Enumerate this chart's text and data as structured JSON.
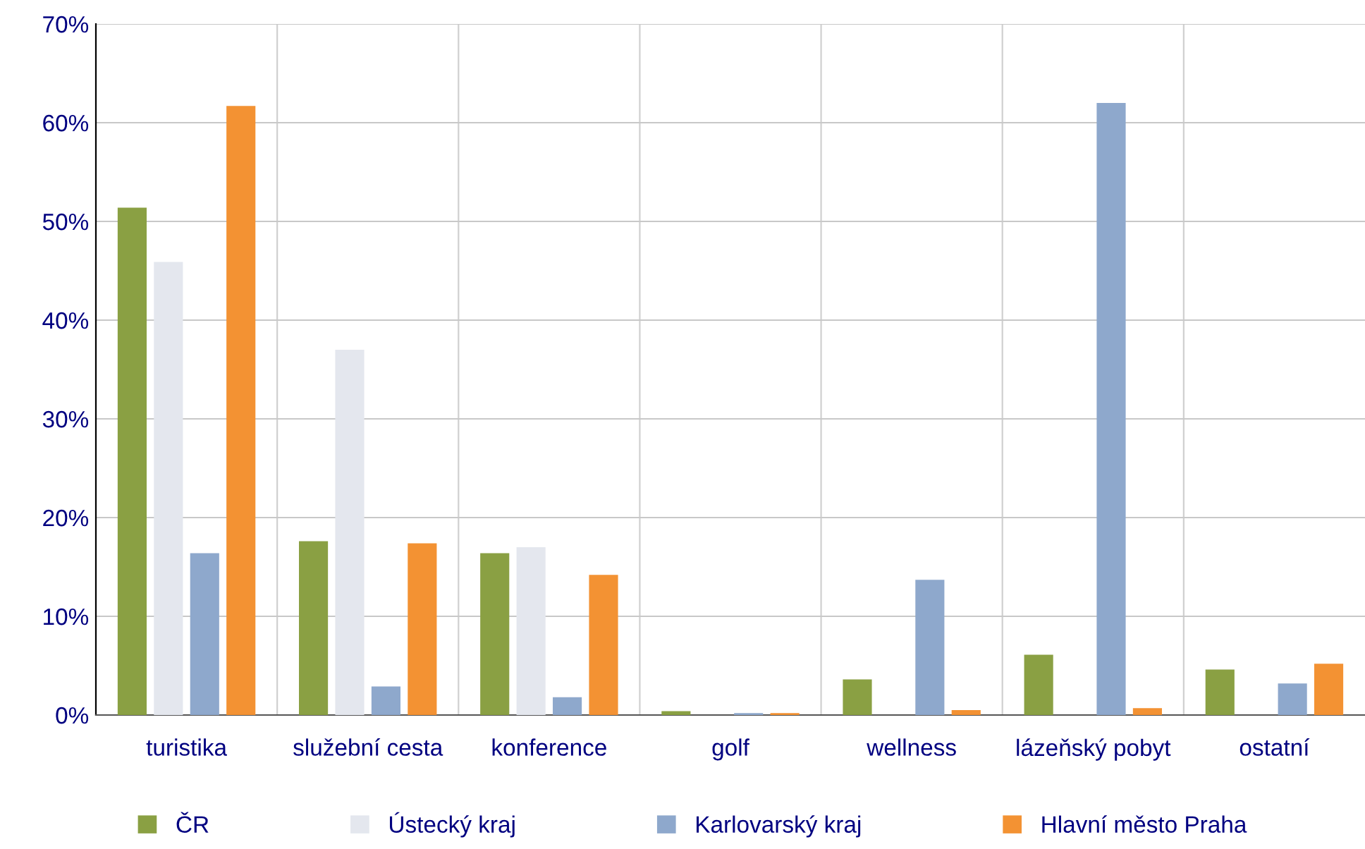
{
  "chart_data": {
    "type": "bar",
    "categories": [
      "turistika",
      "služební cesta",
      "konference",
      "golf",
      "wellness",
      "lázeňský pobyt",
      "ostatní"
    ],
    "series": [
      {
        "name": "ČR",
        "color": "#8aa043",
        "values": [
          51.4,
          17.6,
          16.4,
          0.4,
          3.6,
          6.1,
          4.6
        ]
      },
      {
        "name": "Ústecký kraj",
        "color": "#e4e7ee",
        "values": [
          45.9,
          37.0,
          17.0,
          null,
          null,
          null,
          null
        ]
      },
      {
        "name": "Karlovarský kraj",
        "color": "#8ea8cc",
        "values": [
          16.4,
          2.9,
          1.8,
          0.2,
          13.7,
          62.0,
          3.2
        ]
      },
      {
        "name": "Hlavní město Praha",
        "color": "#f39233",
        "values": [
          61.7,
          17.4,
          14.2,
          0.2,
          0.5,
          0.7,
          5.2
        ]
      }
    ],
    "ylim": [
      0,
      70
    ],
    "yticks": [
      {
        "value": 0,
        "label": "0%"
      },
      {
        "value": 10,
        "label": "10%"
      },
      {
        "value": 20,
        "label": "20%"
      },
      {
        "value": 30,
        "label": "30%"
      },
      {
        "value": 40,
        "label": "40%"
      },
      {
        "value": 50,
        "label": "50%"
      },
      {
        "value": 60,
        "label": "60%"
      },
      {
        "value": 70,
        "label": "70%"
      }
    ],
    "grid": true,
    "legend": "bottom"
  }
}
